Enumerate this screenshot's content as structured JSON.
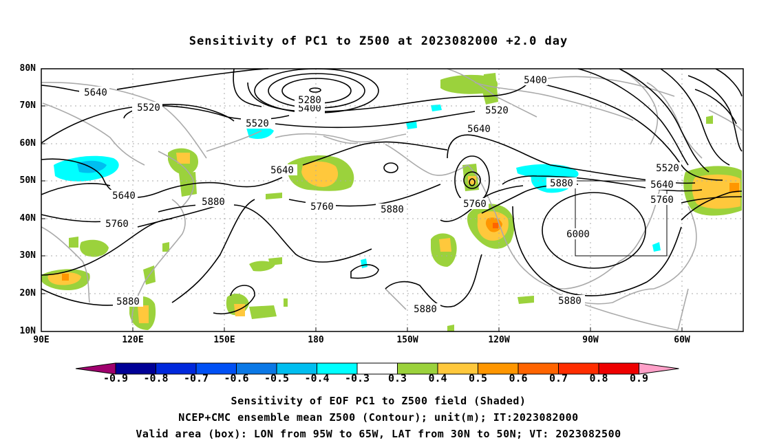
{
  "title": "Sensitivity of PC1 to Z500 at 2023082000 +2.0 day",
  "latitude_labels": [
    "80N",
    "70N",
    "60N",
    "50N",
    "40N",
    "30N",
    "20N",
    "10N"
  ],
  "longitude_labels": [
    "90E",
    "120E",
    "150E",
    "180",
    "150W",
    "120W",
    "90W",
    "60W"
  ],
  "contour_labels": [
    "5640",
    "5520",
    "5520",
    "5400",
    "5280",
    "5400",
    "5640",
    "5520",
    "5640",
    "5880",
    "5640",
    "5760",
    "5520",
    "5760",
    "5880",
    "5640",
    "5760",
    "5880",
    "6000",
    "5880",
    "5880",
    "5880"
  ],
  "colorbar": {
    "ticks": [
      "-0.9",
      "-0.8",
      "-0.7",
      "-0.6",
      "-0.5",
      "-0.4",
      "-0.3",
      "0.3",
      "0.4",
      "0.5",
      "0.6",
      "0.7",
      "0.8",
      "0.9"
    ],
    "colors": [
      "#a0006e",
      "#000096",
      "#0028dc",
      "#0050f5",
      "#0a78e6",
      "#00bef0",
      "#00ffff",
      "#ffffff",
      "#9bd23c",
      "#ffc83c",
      "#ff9600",
      "#ff6400",
      "#ff2d00",
      "#ee0000",
      "#ffa0c8"
    ]
  },
  "valid_box": {
    "lon_from": "95W",
    "lon_to": "65W",
    "lat_from": "30N",
    "lat_to": "50N"
  },
  "captions": [
    "Sensitivity of EOF PC1 to Z500 field (Shaded)",
    "NCEP+CMC ensemble mean Z500 (Contour); unit(m); IT:2023082000",
    "Valid area (box): LON from 95W to 65W, LAT from 30N to 50N; VT: 2023082500"
  ],
  "colors": {
    "coast": "#aaaaaa",
    "grid": "#aaaaaa",
    "contour": "#000000",
    "box": "#000000"
  }
}
